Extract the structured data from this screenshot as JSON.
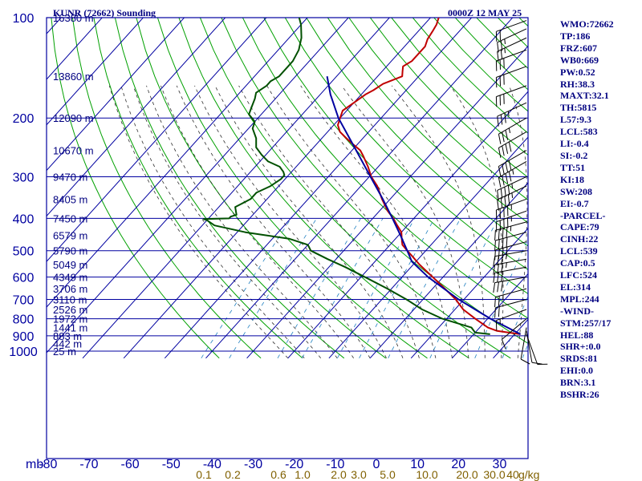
{
  "header": {
    "station_title": "KUNR (72662) Sounding",
    "datetime": "0000Z 12 MAY 25"
  },
  "indices": [
    "WMO:72662",
    "TP:186",
    "FRZ:607",
    "WB0:669",
    "PW:0.52",
    "RH:38.3",
    "MAXT:32.1",
    "TH:5815",
    "L57:9.3",
    "LCL:583",
    "LI:-0.4",
    "SI:-0.2",
    "TT:51",
    "KI:18",
    "SW:208",
    "EI:-0.7",
    "-PARCEL-",
    "CAPE:79",
    "CINH:22",
    "LCL:539",
    "CAP:0.5",
    "LFC:524",
    "EL:314",
    "MPL:244",
    "-WIND-",
    "STM:257/17",
    "HEL:88",
    "SHR+:0.0",
    "SRDS:81",
    "EHI:0.0",
    "BRN:3.1",
    "BSHR:26"
  ],
  "colors": {
    "frame": "#0000a0",
    "isotherm": "#0000a0",
    "dry_adiabat": "#00a000",
    "moist_adiabat": "#303030",
    "mixing_ratio": "#2080c0",
    "temperature": "#c00000",
    "dewpoint": "#005000",
    "parcel": "#0000a0",
    "label": "#000080",
    "mixing_label": "#806000",
    "barb": "#000000"
  },
  "chart_data": {
    "type": "skew-t log-p sounding",
    "pressure_unit": "mb",
    "temperature_unit": "C",
    "pressure_ticks": [
      "100",
      "200",
      "300",
      "400",
      "500",
      "600",
      "700",
      "800",
      "900",
      "1000"
    ],
    "temperature_ticks": [
      "-80",
      "-70",
      "-60",
      "-50",
      "-40",
      "-30",
      "-20",
      "-10",
      "0",
      "10",
      "20",
      "30"
    ],
    "height_labels": [
      {
        "p": 100,
        "label": "16380 m"
      },
      {
        "p": 150,
        "label": "13860 m"
      },
      {
        "p": 200,
        "label": "12090 m"
      },
      {
        "p": 250,
        "label": "10670 m"
      },
      {
        "p": 300,
        "label": "9470 m"
      },
      {
        "p": 350,
        "label": "8405 m"
      },
      {
        "p": 400,
        "label": "7450 m"
      },
      {
        "p": 450,
        "label": "6579 m"
      },
      {
        "p": 500,
        "label": "5790 m"
      },
      {
        "p": 550,
        "label": "5049 m"
      },
      {
        "p": 600,
        "label": "4349 m"
      },
      {
        "p": 650,
        "label": "3706 m"
      },
      {
        "p": 700,
        "label": "3110 m"
      },
      {
        "p": 750,
        "label": "2526 m"
      },
      {
        "p": 800,
        "label": "1972 m"
      },
      {
        "p": 850,
        "label": "1441 m"
      },
      {
        "p": 900,
        "label": "883 m"
      },
      {
        "p": 950,
        "label": "442 m"
      },
      {
        "p": 1000,
        "label": "25 m"
      }
    ],
    "mixing_ratio_labels": [
      "0.1",
      "0.2",
      "0.6",
      "1.0",
      "2.0",
      "3.0",
      "5.0",
      "10.0",
      "20.0",
      "30.0",
      "40"
    ],
    "mixing_ratio_unit": "g/kg",
    "temperature_profile": [
      [
        890,
        31.4
      ],
      [
        870,
        25
      ],
      [
        850,
        22
      ],
      [
        800,
        17
      ],
      [
        750,
        12
      ],
      [
        700,
        8
      ],
      [
        650,
        3
      ],
      [
        600,
        -2.5
      ],
      [
        550,
        -8.5
      ],
      [
        520,
        -12
      ],
      [
        500,
        -14.5
      ],
      [
        480,
        -17
      ],
      [
        460,
        -18.5
      ],
      [
        440,
        -20
      ],
      [
        420,
        -22.5
      ],
      [
        400,
        -25
      ],
      [
        380,
        -28
      ],
      [
        350,
        -32
      ],
      [
        320,
        -36
      ],
      [
        300,
        -39.5
      ],
      [
        280,
        -42.5
      ],
      [
        260,
        -46
      ],
      [
        250,
        -48
      ],
      [
        240,
        -51
      ],
      [
        230,
        -54
      ],
      [
        220,
        -57
      ],
      [
        210,
        -59
      ],
      [
        200,
        -60
      ],
      [
        190,
        -61
      ],
      [
        180,
        -60
      ],
      [
        170,
        -59
      ],
      [
        165,
        -58
      ],
      [
        158,
        -57
      ],
      [
        150,
        -54
      ],
      [
        145,
        -55
      ],
      [
        140,
        -56
      ],
      [
        135,
        -55
      ],
      [
        128,
        -55
      ],
      [
        122,
        -55
      ],
      [
        116,
        -56
      ],
      [
        110,
        -56.5
      ],
      [
        105,
        -57
      ],
      [
        100,
        -58
      ]
    ],
    "dewpoint_profile": [
      [
        890,
        24
      ],
      [
        880,
        20
      ],
      [
        850,
        18
      ],
      [
        800,
        9
      ],
      [
        750,
        2
      ],
      [
        700,
        -4
      ],
      [
        650,
        -11
      ],
      [
        600,
        -19
      ],
      [
        560,
        -26
      ],
      [
        530,
        -32
      ],
      [
        500,
        -38
      ],
      [
        480,
        -40
      ],
      [
        460,
        -46
      ],
      [
        440,
        -58
      ],
      [
        420,
        -67
      ],
      [
        405,
        -70
      ],
      [
        402,
        -71
      ],
      [
        400,
        -65
      ],
      [
        395,
        -65
      ],
      [
        390,
        -64
      ],
      [
        370,
        -66
      ],
      [
        350,
        -64
      ],
      [
        335,
        -64
      ],
      [
        320,
        -62
      ],
      [
        305,
        -61
      ],
      [
        297,
        -61
      ],
      [
        290,
        -62
      ],
      [
        280,
        -64
      ],
      [
        270,
        -68
      ],
      [
        258,
        -71
      ],
      [
        245,
        -74
      ],
      [
        230,
        -76
      ],
      [
        215,
        -79
      ],
      [
        205,
        -80
      ],
      [
        195,
        -83
      ],
      [
        185,
        -84
      ],
      [
        175,
        -85
      ],
      [
        168,
        -86
      ],
      [
        160,
        -85
      ],
      [
        155,
        -85
      ],
      [
        150,
        -84
      ],
      [
        143,
        -84
      ],
      [
        135,
        -84
      ],
      [
        125,
        -85
      ],
      [
        115,
        -87
      ],
      [
        105,
        -90
      ],
      [
        100,
        -92
      ]
    ],
    "parcel_profile": [
      [
        890,
        31.4
      ],
      [
        800,
        20.7
      ],
      [
        700,
        8.7
      ],
      [
        600,
        -3.6
      ],
      [
        539,
        -11.0
      ],
      [
        500,
        -14.5
      ],
      [
        450,
        -19.5
      ],
      [
        400,
        -25.2
      ],
      [
        350,
        -31.8
      ],
      [
        300,
        -39.7
      ],
      [
        250,
        -49.0
      ],
      [
        200,
        -60.4
      ],
      [
        170,
        -67.5
      ],
      [
        150,
        -72.3
      ]
    ],
    "wind_barbs": [
      {
        "p": 890,
        "dir": 160,
        "spd": 10
      },
      {
        "p": 870,
        "dir": 170,
        "spd": 10
      },
      {
        "p": 850,
        "dir": 190,
        "spd": 10
      },
      {
        "p": 800,
        "dir": 230,
        "spd": 10
      },
      {
        "p": 750,
        "dir": 250,
        "spd": 15
      },
      {
        "p": 700,
        "dir": 255,
        "spd": 20
      },
      {
        "p": 650,
        "dir": 255,
        "spd": 25
      },
      {
        "p": 600,
        "dir": 260,
        "spd": 30
      },
      {
        "p": 560,
        "dir": 260,
        "spd": 30
      },
      {
        "p": 530,
        "dir": 260,
        "spd": 35
      },
      {
        "p": 500,
        "dir": 260,
        "spd": 35
      },
      {
        "p": 470,
        "dir": 255,
        "spd": 40
      },
      {
        "p": 440,
        "dir": 255,
        "spd": 40
      },
      {
        "p": 410,
        "dir": 255,
        "spd": 45
      },
      {
        "p": 380,
        "dir": 250,
        "spd": 45
      },
      {
        "p": 350,
        "dir": 250,
        "spd": 45
      },
      {
        "p": 320,
        "dir": 245,
        "spd": 45
      },
      {
        "p": 300,
        "dir": 245,
        "spd": 45
      },
      {
        "p": 270,
        "dir": 240,
        "spd": 45
      },
      {
        "p": 250,
        "dir": 240,
        "spd": 40
      },
      {
        "p": 220,
        "dir": 240,
        "spd": 40
      },
      {
        "p": 200,
        "dir": 240,
        "spd": 35
      },
      {
        "p": 180,
        "dir": 245,
        "spd": 35
      },
      {
        "p": 160,
        "dir": 250,
        "spd": 30
      },
      {
        "p": 140,
        "dir": 250,
        "spd": 30
      },
      {
        "p": 125,
        "dir": 250,
        "spd": 30
      },
      {
        "p": 115,
        "dir": 245,
        "spd": 25
      },
      {
        "p": 108,
        "dir": 245,
        "spd": 25
      },
      {
        "p": 102,
        "dir": 250,
        "spd": 20
      }
    ]
  }
}
